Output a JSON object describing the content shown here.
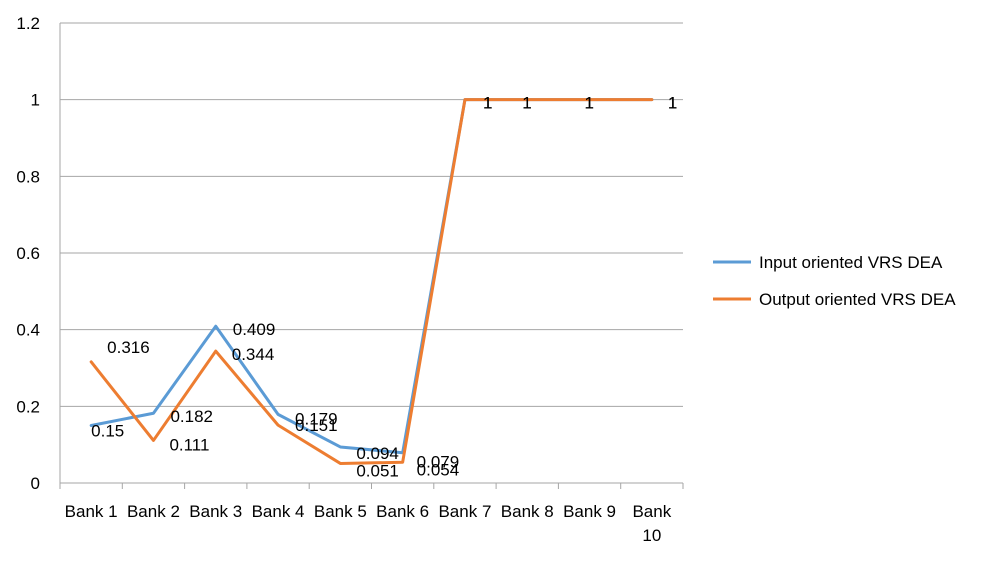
{
  "chart_data": {
    "type": "line",
    "categories": [
      [
        "Bank 1"
      ],
      [
        "Bank 2"
      ],
      [
        "Bank 3"
      ],
      [
        "Bank 4"
      ],
      [
        "Bank 5"
      ],
      [
        "Bank 6"
      ],
      [
        "Bank 7"
      ],
      [
        "Bank 8"
      ],
      [
        "Bank 9"
      ],
      [
        "Bank",
        "10"
      ]
    ],
    "y_ticks": [
      "0",
      "0.2",
      "0.4",
      "0.6",
      "0.8",
      "1",
      "1.2"
    ],
    "ylim": [
      0,
      1.2
    ],
    "grid": "horizontal",
    "legend_position": "right",
    "series": [
      {
        "name": "Input oriented VRS DEA",
        "color": "#5b9bd5",
        "values": [
          0.15,
          0.182,
          0.409,
          0.179,
          0.094,
          0.079,
          1,
          1,
          1,
          1
        ],
        "labels": [
          "0.15",
          "0.182",
          "0.409",
          "0.179",
          "0.094",
          "0.079",
          "1",
          "1",
          "1",
          "1"
        ]
      },
      {
        "name": "Output oriented VRS DEA",
        "color": "#ed7d31",
        "values": [
          0.316,
          0.111,
          0.344,
          0.151,
          0.051,
          0.054,
          1,
          1,
          1,
          1
        ],
        "labels": [
          "0.316",
          "0.111",
          "0.344",
          "0.151",
          "0.051",
          "0.054",
          "1",
          "1",
          "1",
          "1"
        ]
      }
    ]
  }
}
